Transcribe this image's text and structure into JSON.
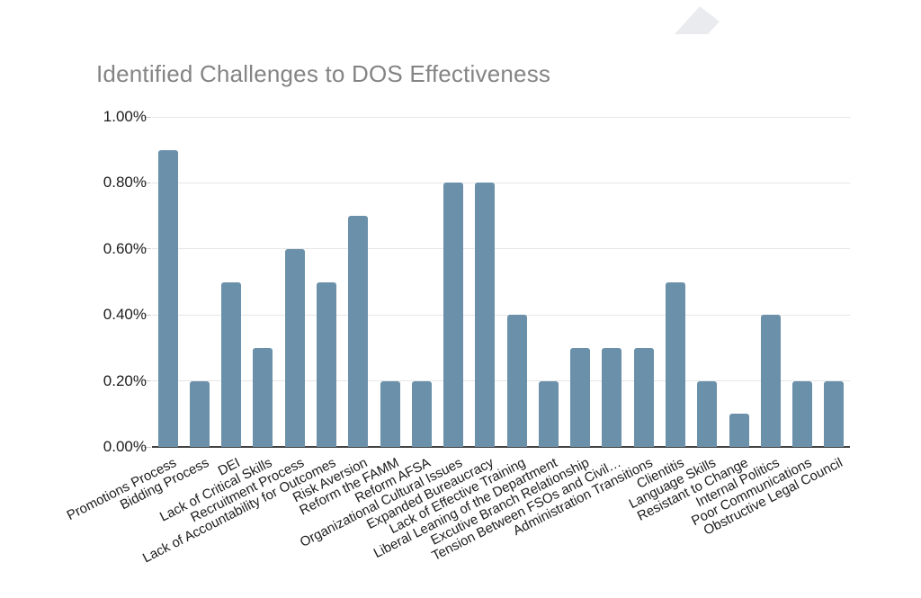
{
  "decor": {
    "corner_shape_color": "#e9ebee"
  },
  "chart_data": {
    "type": "bar",
    "title": "Identified Challenges to DOS Effectiveness",
    "categories": [
      "Promotions Process",
      "Bidding Process",
      "DEI",
      "Lack of Critical Skills",
      "Recruitment Process",
      "Lack of Accountability for Outcomes",
      "Risk Aversion",
      "Reform the FAMM",
      "Reform AFSA",
      "Organizational Cultural Issues",
      "Expanded Bureaucracy",
      "Lack of Effective Training",
      "Liberal Leaning of the Department",
      "Excutive Branch Relationship",
      "Tension Between FSOs and Civil…",
      "Administration Transitions",
      "Clientitis",
      "Language Skills",
      "Resistant to Change",
      "Internal Politics",
      "Poor Communications",
      "Obstructive Legal Council"
    ],
    "values": [
      0.9,
      0.2,
      0.5,
      0.3,
      0.6,
      0.5,
      0.7,
      0.2,
      0.2,
      0.8,
      0.8,
      0.4,
      0.2,
      0.3,
      0.3,
      0.3,
      0.5,
      0.2,
      0.1,
      0.4,
      0.2,
      0.2
    ],
    "value_unit": "%",
    "xlabel": "",
    "ylabel": "",
    "ylim": [
      0,
      1
    ],
    "y_ticks": [
      "0.00%",
      "0.20%",
      "0.40%",
      "0.60%",
      "0.80%",
      "1.00%"
    ],
    "grid": true,
    "legend": "none",
    "bar_color": "#6b90aa",
    "x_label_rotation_deg": -27
  }
}
